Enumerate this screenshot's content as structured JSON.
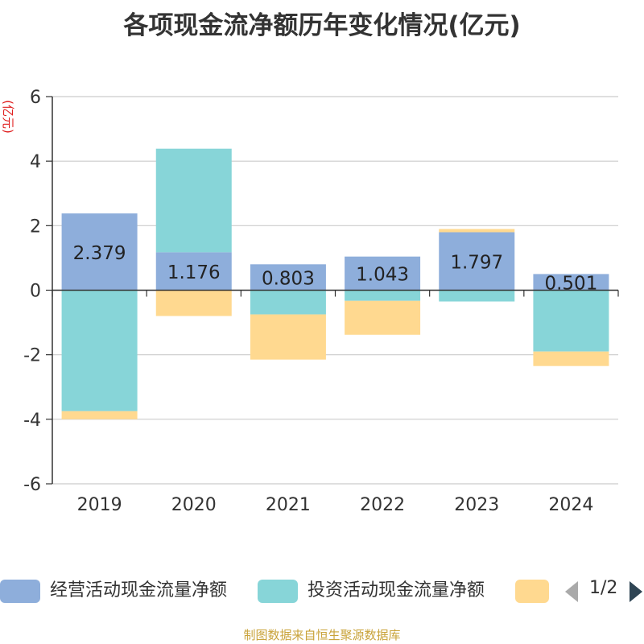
{
  "chart_data": {
    "type": "bar",
    "stacked": true,
    "title": "各项现金流净额历年变化情况(亿元)",
    "ylabel": "(亿元)",
    "categories": [
      "2019",
      "2020",
      "2021",
      "2022",
      "2023",
      "2024"
    ],
    "ylim": [
      -6,
      6
    ],
    "yticks": [
      6,
      4,
      2,
      0,
      -2,
      -4,
      -6
    ],
    "series": [
      {
        "name": "经营活动现金流量净额",
        "color": "#8eaedb",
        "values": [
          2.379,
          1.176,
          0.803,
          1.043,
          1.797,
          0.501
        ]
      },
      {
        "name": "投资活动现金流量净额",
        "color": "#87d5d8",
        "values": [
          -3.75,
          3.21,
          -0.75,
          -0.33,
          -0.35,
          -1.9
        ]
      },
      {
        "name": "",
        "color": "#ffd990",
        "values": [
          -0.25,
          -0.8,
          -1.4,
          -1.05,
          0.1,
          -0.45
        ]
      }
    ],
    "data_labels": [
      "2.379",
      "1.176",
      "0.803",
      "1.043",
      "1.797",
      "0.501"
    ],
    "grid": true,
    "legend_position": "bottom"
  },
  "legend": {
    "page_indicator": "1/2"
  },
  "source": "制图数据来自恒生聚源数据库"
}
